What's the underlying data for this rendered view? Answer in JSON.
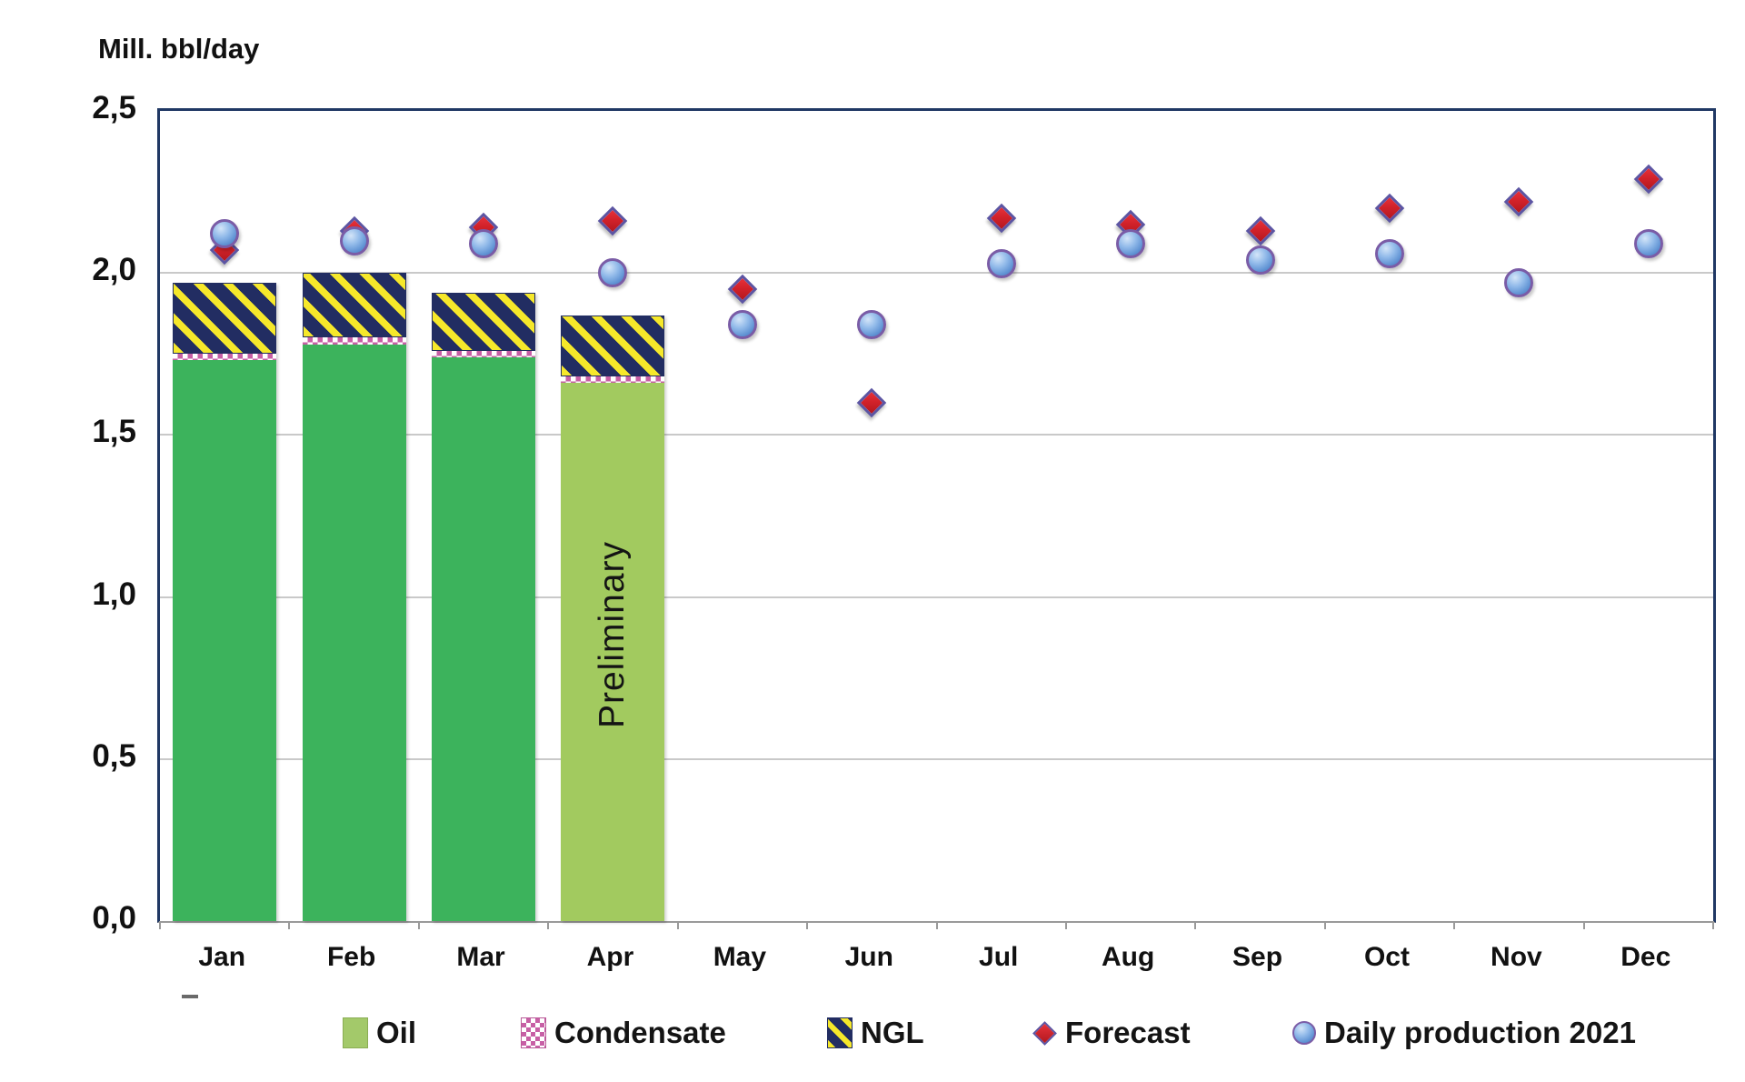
{
  "title": "Mill. bbl/day",
  "annotation": "Preliminary",
  "colors": {
    "oil": "#3cb35c",
    "oil_preliminary": "#a2ca5f",
    "ngl_navy": "#222d62",
    "ngl_yellow": "#f6e82a",
    "condensate_pink": "#c75fa5",
    "forecast_red": "#d2222a",
    "daily_blue": "#6f9edd",
    "marker_border_purple": "#6b519f",
    "frame_navy": "#203864",
    "gridline_gray": "#c9c9c9"
  },
  "legend": [
    {
      "label": "Oil",
      "swatch": "oil"
    },
    {
      "label": "Condensate",
      "swatch": "cond"
    },
    {
      "label": "NGL",
      "swatch": "ngl"
    },
    {
      "label": "Forecast",
      "swatch": "diamond"
    },
    {
      "label": "Daily production 2021",
      "swatch": "dot"
    }
  ],
  "chart_data": {
    "type": "bar",
    "subtype": "stacked-bars-with-scatter-overlay",
    "title": "Mill. bbl/day",
    "xlabel": "",
    "ylabel": "Mill. bbl/day",
    "categories": [
      "Jan",
      "Feb",
      "Mar",
      "Apr",
      "May",
      "Jun",
      "Jul",
      "Aug",
      "Sep",
      "Oct",
      "Nov",
      "Dec"
    ],
    "ylim": [
      0,
      2.5
    ],
    "yticks": [
      {
        "v": 0.0,
        "label": "0,0"
      },
      {
        "v": 0.5,
        "label": "0,5"
      },
      {
        "v": 1.0,
        "label": "1,0"
      },
      {
        "v": 1.5,
        "label": "1,5"
      },
      {
        "v": 2.0,
        "label": "2,0"
      },
      {
        "v": 2.5,
        "label": "2,5"
      }
    ],
    "grid": "horizontal",
    "legend_position": "bottom",
    "annotation": "Preliminary",
    "annotation_month": "Apr",
    "preliminary_index": 3,
    "series": [
      {
        "name": "Oil",
        "type": "bar",
        "values": [
          1.73,
          1.78,
          1.74,
          1.66,
          null,
          null,
          null,
          null,
          null,
          null,
          null,
          null
        ]
      },
      {
        "name": "Condensate",
        "type": "bar",
        "values": [
          0.02,
          0.02,
          0.02,
          0.02,
          null,
          null,
          null,
          null,
          null,
          null,
          null,
          null
        ]
      },
      {
        "name": "NGL",
        "type": "bar",
        "values": [
          0.22,
          0.2,
          0.18,
          0.19,
          null,
          null,
          null,
          null,
          null,
          null,
          null,
          null
        ]
      },
      {
        "name": "Forecast",
        "type": "scatter",
        "marker": "diamond",
        "values": [
          2.07,
          2.13,
          2.14,
          2.16,
          1.95,
          1.6,
          2.17,
          2.15,
          2.13,
          2.2,
          2.22,
          2.29
        ]
      },
      {
        "name": "Daily production 2021",
        "type": "scatter",
        "marker": "circle",
        "values": [
          2.12,
          2.1,
          2.09,
          2.0,
          1.84,
          1.84,
          2.03,
          2.09,
          2.04,
          2.06,
          1.97,
          2.09
        ]
      }
    ]
  }
}
